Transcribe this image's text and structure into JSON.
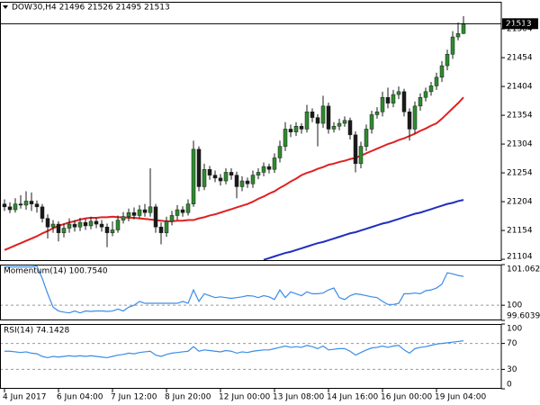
{
  "chart_data": [
    {
      "type": "candlestick",
      "title": "DOW30,H4  21496 21526 21495 21513",
      "x": [
        "4 Jun 2017",
        null,
        null,
        null,
        null,
        null,
        null,
        null,
        null,
        null,
        "6 Jun 04:00",
        null,
        null,
        null,
        null,
        null,
        null,
        null,
        null,
        null,
        "7 Jun 12:00",
        null,
        null,
        null,
        null,
        null,
        null,
        null,
        null,
        null,
        "8 Jun 20:00",
        null,
        null,
        null,
        null,
        null,
        null,
        null,
        null,
        null,
        "12 Jun 00:00",
        null,
        null,
        null,
        null,
        null,
        null,
        null,
        null,
        null,
        "13 Jun 08:00",
        null,
        null,
        null,
        null,
        null,
        null,
        null,
        null,
        null,
        "14 Jun 16:00",
        null,
        null,
        null,
        null,
        null,
        null,
        null,
        null,
        null,
        "16 Jun 00:00",
        null,
        null,
        null,
        null,
        null,
        null,
        null,
        null,
        null,
        "19 Jun 04:00",
        null,
        null,
        null,
        null,
        null
      ],
      "open": [
        21200,
        21195,
        21190,
        21200,
        21198,
        21205,
        21200,
        21195,
        21175,
        21160,
        21165,
        21150,
        21158,
        21165,
        21160,
        21168,
        21162,
        21170,
        21165,
        21160,
        21150,
        21155,
        21172,
        21178,
        21185,
        21180,
        21190,
        21185,
        21195,
        21160,
        21150,
        21170,
        21180,
        21190,
        21185,
        21200,
        21295,
        21230,
        21260,
        21250,
        21245,
        21240,
        21255,
        21250,
        21230,
        21240,
        21235,
        21250,
        21255,
        21265,
        21260,
        21280,
        21300,
        21330,
        21325,
        21335,
        21330,
        21360,
        21350,
        21340,
        21370,
        21330,
        21335,
        21340,
        21345,
        21320,
        21270,
        21300,
        21330,
        21355,
        21360,
        21385,
        21375,
        21390,
        21395,
        21360,
        21330,
        21370,
        21385,
        21395,
        21405,
        21420,
        21440,
        21460,
        21490,
        21496
      ],
      "high": [
        21208,
        21203,
        21210,
        21215,
        21222,
        21220,
        21206,
        21200,
        21182,
        21172,
        21170,
        21166,
        21175,
        21172,
        21176,
        21174,
        21178,
        21176,
        21172,
        21166,
        21170,
        21180,
        21186,
        21192,
        21194,
        21198,
        21200,
        21262,
        21200,
        21168,
        21178,
        21188,
        21198,
        21196,
        21208,
        21310,
        21300,
        21270,
        21266,
        21258,
        21252,
        21262,
        21262,
        21256,
        21248,
        21246,
        21258,
        21262,
        21272,
        21270,
        21288,
        21310,
        21342,
        21338,
        21342,
        21340,
        21372,
        21366,
        21356,
        21388,
        21376,
        21342,
        21348,
        21352,
        21350,
        21326,
        21308,
        21338,
        21362,
        21368,
        21395,
        21402,
        21398,
        21404,
        21400,
        21366,
        21378,
        21392,
        21402,
        21412,
        21428,
        21448,
        21468,
        21500,
        21515,
        21526
      ],
      "low": [
        21188,
        21184,
        21185,
        21192,
        21190,
        21188,
        21185,
        21168,
        21140,
        21150,
        21135,
        21142,
        21150,
        21152,
        21153,
        21155,
        21156,
        21158,
        21152,
        21125,
        21144,
        21150,
        21166,
        21170,
        21173,
        21175,
        21178,
        21178,
        21150,
        21130,
        21143,
        21163,
        21172,
        21178,
        21180,
        21195,
        21222,
        21224,
        21242,
        21238,
        21232,
        21234,
        21242,
        21210,
        21222,
        21228,
        21228,
        21243,
        21248,
        21253,
        21254,
        21272,
        21292,
        21316,
        21318,
        21322,
        21324,
        21342,
        21300,
        21332,
        21322,
        21324,
        21328,
        21334,
        21312,
        21255,
        21262,
        21292,
        21322,
        21348,
        21352,
        21366,
        21368,
        21382,
        21352,
        21310,
        21322,
        21362,
        21378,
        21388,
        21398,
        21412,
        21432,
        21452,
        21484,
        21495
      ],
      "close": [
        21195,
        21190,
        21200,
        21198,
        21205,
        21200,
        21195,
        21175,
        21160,
        21165,
        21150,
        21158,
        21165,
        21160,
        21168,
        21162,
        21170,
        21165,
        21160,
        21150,
        21155,
        21172,
        21178,
        21185,
        21180,
        21190,
        21185,
        21195,
        21160,
        21150,
        21170,
        21180,
        21190,
        21185,
        21200,
        21295,
        21230,
        21260,
        21250,
        21245,
        21240,
        21255,
        21250,
        21230,
        21240,
        21235,
        21250,
        21255,
        21265,
        21260,
        21280,
        21300,
        21330,
        21325,
        21335,
        21330,
        21360,
        21350,
        21340,
        21370,
        21330,
        21335,
        21340,
        21345,
        21320,
        21270,
        21300,
        21330,
        21355,
        21360,
        21385,
        21375,
        21390,
        21395,
        21360,
        21330,
        21370,
        21385,
        21395,
        21405,
        21420,
        21440,
        21460,
        21490,
        21496,
        21513
      ],
      "up_color": "#2e8b2e",
      "down_color": "#1a1a1a",
      "series": [
        {
          "color": "#e02020",
          "values": [
            21120,
            21124,
            21128,
            21132,
            21136,
            21140,
            21144,
            21149,
            21153,
            21158,
            21162,
            21165,
            21168,
            21170,
            21173,
            21175,
            21176,
            21176,
            21177,
            21177,
            21178,
            21177,
            21177,
            21176,
            21176,
            21175,
            21174,
            21173,
            21172,
            21171,
            21170,
            21170,
            21171,
            21171,
            21172,
            21172,
            21175,
            21177,
            21180,
            21182,
            21185,
            21188,
            21191,
            21194,
            21197,
            21200,
            21204,
            21209,
            21213,
            21218,
            21222,
            21228,
            21233,
            21239,
            21244,
            21250,
            21254,
            21257,
            21261,
            21264,
            21268,
            21270,
            21273,
            21275,
            21278,
            21280,
            21284,
            21288,
            21292,
            21296,
            21300,
            21304,
            21307,
            21311,
            21314,
            21318,
            21322,
            21327,
            21331,
            21336,
            21340,
            21348,
            21357,
            21366,
            21375,
            21385
          ]
        },
        {
          "color": "#1f2fbf",
          "values": [
            null,
            null,
            null,
            null,
            null,
            null,
            null,
            null,
            null,
            null,
            null,
            null,
            null,
            null,
            null,
            null,
            null,
            null,
            null,
            null,
            null,
            null,
            null,
            null,
            null,
            null,
            null,
            null,
            null,
            null,
            null,
            null,
            null,
            null,
            null,
            null,
            null,
            null,
            null,
            null,
            null,
            null,
            null,
            null,
            null,
            null,
            null,
            null,
            21103,
            21106,
            21109,
            21112,
            21115,
            21117,
            21120,
            21123,
            21126,
            21129,
            21132,
            21134,
            21137,
            21140,
            21143,
            21146,
            21149,
            21151,
            21154,
            21157,
            21160,
            21163,
            21166,
            21168,
            21171,
            21174,
            21177,
            21180,
            21183,
            21185,
            21188,
            21191,
            21194,
            21197,
            21200,
            21202,
            21205,
            21207
          ]
        }
      ],
      "last_price": 21513,
      "ylim": [
        21101,
        21551
      ],
      "yticks": [
        21504,
        21454,
        21404,
        21354,
        21304,
        21254,
        21204,
        21154,
        21104
      ]
    },
    {
      "type": "line",
      "title": "Momentum(14) 100.7540",
      "color": "#3c8ce6",
      "values": [
        101.0,
        101.0,
        101.0,
        101.0,
        101.0,
        101.0,
        101.02,
        100.7,
        100.3,
        99.95,
        99.85,
        99.82,
        99.8,
        99.85,
        99.8,
        99.85,
        99.84,
        99.85,
        99.85,
        99.84,
        99.85,
        99.9,
        99.85,
        99.95,
        100.0,
        100.1,
        100.05,
        100.05,
        100.05,
        100.05,
        100.05,
        100.05,
        100.05,
        100.1,
        100.05,
        100.4,
        100.1,
        100.3,
        100.25,
        100.2,
        100.22,
        100.2,
        100.18,
        100.2,
        100.22,
        100.25,
        100.24,
        100.2,
        100.25,
        100.22,
        100.15,
        100.4,
        100.2,
        100.35,
        100.3,
        100.25,
        100.35,
        100.3,
        100.3,
        100.32,
        100.4,
        100.45,
        100.2,
        100.15,
        100.25,
        100.3,
        100.28,
        100.25,
        100.22,
        100.2,
        100.1,
        100.02,
        100.02,
        100.05,
        100.3,
        100.3,
        100.32,
        100.3,
        100.38,
        100.4,
        100.45,
        100.55,
        100.85,
        100.82,
        100.78,
        100.754
      ],
      "levels": [
        100
      ],
      "ylim": [
        99.6039,
        101.0622
      ],
      "yticks": [
        101.0622,
        100,
        99.6039
      ]
    },
    {
      "type": "line",
      "title": "RSI(14) 74.1428",
      "color": "#3c8ce6",
      "values": [
        58,
        58,
        57,
        56,
        57,
        55,
        54,
        50,
        48,
        50,
        49,
        50,
        51,
        50,
        51,
        50,
        51,
        50,
        49,
        48,
        50,
        52,
        53,
        55,
        54,
        56,
        57,
        58,
        52,
        50,
        53,
        55,
        56,
        57,
        58,
        65,
        58,
        60,
        59,
        58,
        57,
        59,
        58,
        55,
        57,
        56,
        58,
        59,
        60,
        60,
        62,
        64,
        66,
        64,
        65,
        64,
        67,
        65,
        62,
        66,
        60,
        61,
        62,
        62,
        58,
        52,
        56,
        60,
        63,
        64,
        66,
        64,
        66,
        67,
        60,
        55,
        62,
        64,
        65,
        67,
        69,
        70,
        71,
        72,
        73,
        74.1428
      ],
      "levels": [
        70,
        30
      ],
      "ylim": [
        0,
        100
      ],
      "yticks": [
        100,
        70,
        30,
        0
      ]
    }
  ]
}
